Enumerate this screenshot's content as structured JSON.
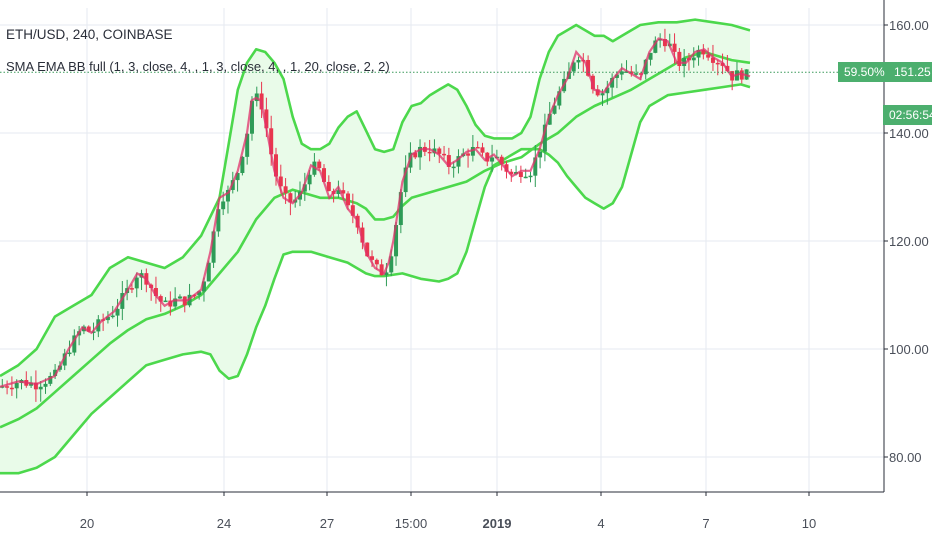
{
  "header": {
    "symbol_line": "ETH/USD, 240, COINBASE",
    "indicator_line": "SMA EMA BB full (1, 3, close, 4, , 1, 3, close, 4, , 1, 20, close, 2, 2)"
  },
  "price_axis": {
    "percent_tag": "59.50%",
    "price_tag": "151.25",
    "countdown_tag": "02:56:54"
  },
  "colors": {
    "band": "#4cd84c",
    "band_fill": "#e9fbe9",
    "candle_up": "#2e9b57",
    "candle_down": "#e8364f",
    "grid": "#e6eaf0",
    "axis_text": "#4a4f59",
    "tag_green": "#4caf6e"
  },
  "chart_data": {
    "type": "candlestick",
    "title": "ETH/USD, 240, COINBASE",
    "xlabel": "",
    "ylabel": "",
    "ylim": [
      72,
      164
    ],
    "y_ticks": [
      "80.00",
      "100.00",
      "120.00",
      "140.00",
      "160.00"
    ],
    "x_ticks": [
      "20",
      "24",
      "27",
      "15:00",
      "2019",
      "4",
      "7",
      "10"
    ],
    "last_price": 151.25,
    "grid": true,
    "price_path": [
      [
        0,
        93
      ],
      [
        4,
        94
      ],
      [
        8,
        93.5
      ],
      [
        12,
        95
      ],
      [
        15,
        100
      ],
      [
        18,
        104
      ],
      [
        20,
        103
      ],
      [
        22,
        105
      ],
      [
        25,
        107
      ],
      [
        28,
        111
      ],
      [
        30,
        114
      ],
      [
        32,
        113
      ],
      [
        34,
        110
      ],
      [
        36,
        108
      ],
      [
        38,
        109
      ],
      [
        41,
        109
      ],
      [
        44,
        111
      ],
      [
        46,
        118
      ],
      [
        48,
        128
      ],
      [
        50,
        129
      ],
      [
        52,
        133
      ],
      [
        54,
        140
      ],
      [
        55,
        146
      ],
      [
        56,
        146.5
      ],
      [
        57,
        146
      ],
      [
        58,
        142
      ],
      [
        60,
        133
      ],
      [
        62,
        128
      ],
      [
        64,
        127
      ],
      [
        66,
        129
      ],
      [
        68,
        134
      ],
      [
        70,
        133
      ],
      [
        72,
        128
      ],
      [
        74,
        130
      ],
      [
        76,
        126
      ],
      [
        78,
        124
      ],
      [
        80,
        118
      ],
      [
        82,
        115
      ],
      [
        84,
        114
      ],
      [
        85,
        116
      ],
      [
        86,
        120
      ],
      [
        88,
        131
      ],
      [
        90,
        136
      ],
      [
        92,
        137
      ],
      [
        94,
        137
      ],
      [
        96,
        136
      ],
      [
        98,
        134
      ],
      [
        100,
        135
      ],
      [
        102,
        136.5
      ],
      [
        104,
        137
      ],
      [
        106,
        135
      ],
      [
        108,
        136
      ],
      [
        110,
        134
      ],
      [
        112,
        132
      ],
      [
        114,
        133
      ],
      [
        116,
        133
      ],
      [
        118,
        137
      ],
      [
        120,
        143
      ],
      [
        122,
        147
      ],
      [
        124,
        150
      ],
      [
        126,
        155
      ],
      [
        128,
        153
      ],
      [
        130,
        148
      ],
      [
        132,
        147.5
      ],
      [
        134,
        150
      ],
      [
        136,
        152
      ],
      [
        138,
        151
      ],
      [
        140,
        150
      ],
      [
        142,
        155
      ],
      [
        144,
        157.5
      ],
      [
        146,
        157
      ],
      [
        148,
        153
      ],
      [
        150,
        153
      ],
      [
        152,
        155
      ],
      [
        154,
        155.5
      ],
      [
        156,
        154
      ],
      [
        158,
        153
      ],
      [
        160,
        150.5
      ],
      [
        162,
        151
      ],
      [
        164,
        150.5
      ]
    ],
    "bollinger_upper": [
      [
        0,
        95
      ],
      [
        4,
        97
      ],
      [
        8,
        100
      ],
      [
        12,
        106
      ],
      [
        16,
        108
      ],
      [
        20,
        110
      ],
      [
        24,
        115
      ],
      [
        28,
        117
      ],
      [
        32,
        116
      ],
      [
        36,
        115
      ],
      [
        40,
        117
      ],
      [
        44,
        121
      ],
      [
        48,
        128
      ],
      [
        50,
        138
      ],
      [
        52,
        148
      ],
      [
        54,
        153
      ],
      [
        56,
        155.5
      ],
      [
        58,
        155
      ],
      [
        60,
        153
      ],
      [
        62,
        150
      ],
      [
        64,
        143
      ],
      [
        66,
        138
      ],
      [
        68,
        137
      ],
      [
        70,
        137
      ],
      [
        72,
        138
      ],
      [
        74,
        141
      ],
      [
        76,
        143
      ],
      [
        78,
        144
      ],
      [
        80,
        140.5
      ],
      [
        82,
        137
      ],
      [
        84,
        136.5
      ],
      [
        86,
        137
      ],
      [
        88,
        142
      ],
      [
        90,
        145
      ],
      [
        92,
        145.5
      ],
      [
        94,
        147
      ],
      [
        96,
        148
      ],
      [
        98,
        149
      ],
      [
        100,
        148
      ],
      [
        102,
        145
      ],
      [
        104,
        141.5
      ],
      [
        106,
        139.5
      ],
      [
        108,
        139
      ],
      [
        110,
        139
      ],
      [
        112,
        139
      ],
      [
        114,
        140
      ],
      [
        116,
        143
      ],
      [
        118,
        150
      ],
      [
        120,
        155
      ],
      [
        122,
        158
      ],
      [
        124,
        159
      ],
      [
        126,
        160
      ],
      [
        128,
        159
      ],
      [
        130,
        158
      ],
      [
        132,
        158
      ],
      [
        134,
        157
      ],
      [
        136,
        158
      ],
      [
        138,
        159
      ],
      [
        140,
        160
      ],
      [
        144,
        160.5
      ],
      [
        148,
        160.5
      ],
      [
        152,
        161
      ],
      [
        156,
        160.5
      ],
      [
        160,
        160
      ],
      [
        164,
        159
      ]
    ],
    "bollinger_middle": [
      [
        0,
        85.5
      ],
      [
        4,
        87
      ],
      [
        8,
        89
      ],
      [
        12,
        92
      ],
      [
        16,
        95
      ],
      [
        20,
        98
      ],
      [
        24,
        101
      ],
      [
        28,
        103.5
      ],
      [
        32,
        105.5
      ],
      [
        36,
        106.5
      ],
      [
        40,
        108
      ],
      [
        44,
        110
      ],
      [
        48,
        114
      ],
      [
        52,
        118
      ],
      [
        56,
        124
      ],
      [
        60,
        128
      ],
      [
        64,
        129.5
      ],
      [
        66,
        129
      ],
      [
        70,
        128
      ],
      [
        74,
        128
      ],
      [
        78,
        127
      ],
      [
        80,
        126
      ],
      [
        82,
        124
      ],
      [
        84,
        124
      ],
      [
        86,
        124.5
      ],
      [
        88,
        126.5
      ],
      [
        90,
        128
      ],
      [
        94,
        129
      ],
      [
        98,
        130
      ],
      [
        102,
        131
      ],
      [
        106,
        133
      ],
      [
        110,
        134.5
      ],
      [
        114,
        135.5
      ],
      [
        118,
        138
      ],
      [
        122,
        140
      ],
      [
        126,
        143
      ],
      [
        130,
        145
      ],
      [
        134,
        146.5
      ],
      [
        138,
        148
      ],
      [
        142,
        150
      ],
      [
        146,
        152
      ],
      [
        150,
        154
      ],
      [
        152,
        154.5
      ],
      [
        154,
        155
      ],
      [
        156,
        154.5
      ],
      [
        160,
        153.5
      ],
      [
        164,
        153
      ]
    ],
    "bollinger_lower": [
      [
        0,
        77
      ],
      [
        4,
        77
      ],
      [
        8,
        78
      ],
      [
        12,
        80
      ],
      [
        16,
        84
      ],
      [
        20,
        88
      ],
      [
        24,
        91
      ],
      [
        28,
        94
      ],
      [
        32,
        97
      ],
      [
        36,
        98
      ],
      [
        40,
        99
      ],
      [
        44,
        99.5
      ],
      [
        46,
        99
      ],
      [
        48,
        96
      ],
      [
        50,
        94.5
      ],
      [
        52,
        95
      ],
      [
        54,
        99
      ],
      [
        56,
        104
      ],
      [
        58,
        108
      ],
      [
        60,
        113
      ],
      [
        62,
        117.5
      ],
      [
        64,
        118
      ],
      [
        68,
        118
      ],
      [
        72,
        117
      ],
      [
        76,
        116
      ],
      [
        80,
        114
      ],
      [
        82,
        113.5
      ],
      [
        84,
        113.5
      ],
      [
        88,
        114
      ],
      [
        92,
        113
      ],
      [
        96,
        112.5
      ],
      [
        98,
        113
      ],
      [
        100,
        114
      ],
      [
        102,
        118
      ],
      [
        104,
        124
      ],
      [
        106,
        130
      ],
      [
        108,
        134
      ],
      [
        110,
        135
      ],
      [
        114,
        137
      ],
      [
        118,
        137
      ],
      [
        120,
        136
      ],
      [
        122,
        134.5
      ],
      [
        124,
        132
      ],
      [
        126,
        130
      ],
      [
        128,
        128
      ],
      [
        130,
        127
      ],
      [
        132,
        126
      ],
      [
        134,
        127
      ],
      [
        136,
        130
      ],
      [
        138,
        136
      ],
      [
        140,
        142
      ],
      [
        142,
        145
      ],
      [
        146,
        147
      ],
      [
        150,
        147.5
      ],
      [
        154,
        148
      ],
      [
        158,
        148.5
      ],
      [
        162,
        149
      ],
      [
        164,
        148.5
      ]
    ],
    "sma_ema_lines": "red/magenta smoothed price overlays following close"
  }
}
